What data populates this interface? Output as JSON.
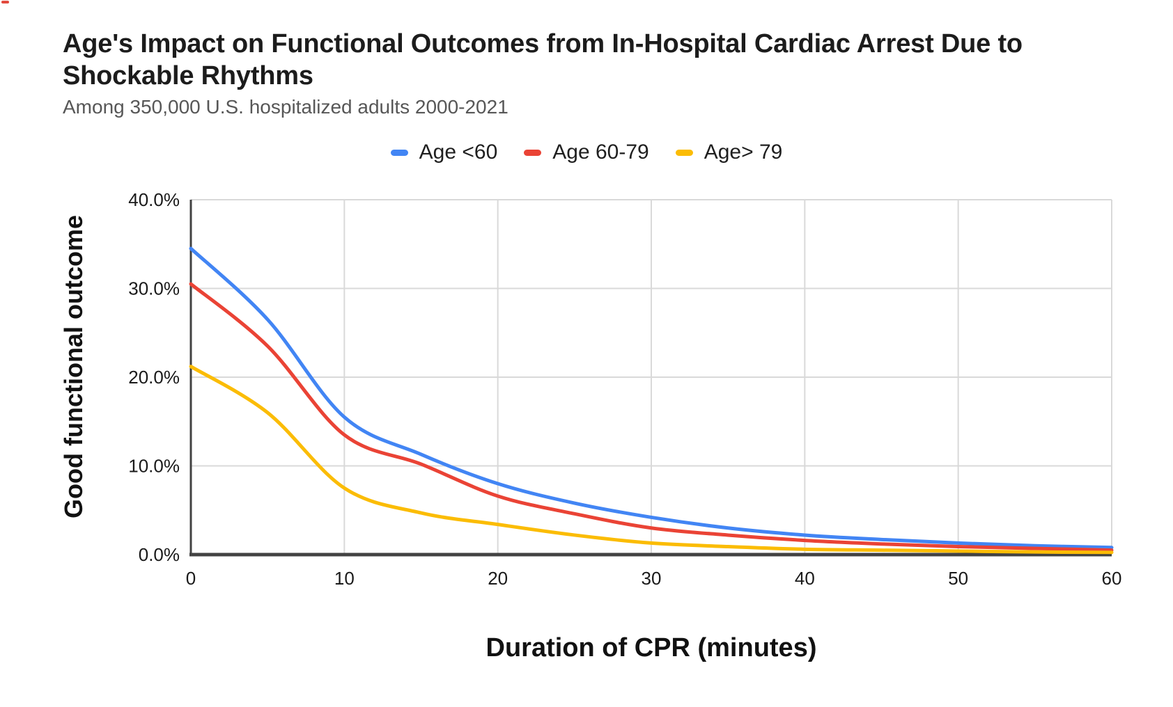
{
  "header": {
    "title": "Age's Impact on Functional Outcomes from In-Hospital Cardiac Arrest Due to Shockable Rhythms",
    "subtitle": "Among 350,000 U.S. hospitalized adults 2000-2021"
  },
  "chart_data": {
    "type": "line",
    "title": "Age's Impact on Functional Outcomes from In-Hospital Cardiac Arrest Due to Shockable Rhythms",
    "subtitle": "Among 350,000 U.S. hospitalized adults 2000-2021",
    "xlabel": "Duration of CPR (minutes)",
    "ylabel": "Good functional outcome",
    "xlim": [
      0,
      60
    ],
    "ylim": [
      0,
      40
    ],
    "x_ticks": [
      0,
      10,
      20,
      30,
      40,
      50,
      60
    ],
    "x_tick_labels": [
      "0",
      "10",
      "20",
      "30",
      "40",
      "50",
      "60"
    ],
    "y_ticks": [
      0,
      10,
      20,
      30,
      40
    ],
    "y_tick_labels": [
      "0.0%",
      "10.0%",
      "20.0%",
      "30.0%",
      "40.0%"
    ],
    "grid": true,
    "legend_position": "top",
    "x": [
      0,
      5,
      10,
      15,
      20,
      25,
      30,
      35,
      40,
      45,
      50,
      55,
      60
    ],
    "series": [
      {
        "name": "Age <60",
        "color": "#4285F4",
        "values": [
          34.5,
          26.5,
          15.5,
          11.3,
          8.0,
          5.8,
          4.2,
          3.0,
          2.2,
          1.7,
          1.3,
          1.0,
          0.8
        ]
      },
      {
        "name": "Age 60-79",
        "color": "#EA4335",
        "values": [
          30.5,
          23.5,
          13.5,
          10.2,
          6.6,
          4.6,
          3.0,
          2.2,
          1.6,
          1.2,
          0.9,
          0.7,
          0.5
        ]
      },
      {
        "name": "Age> 79",
        "color": "#FBBC04",
        "values": [
          21.2,
          16.0,
          7.5,
          4.7,
          3.4,
          2.2,
          1.3,
          0.9,
          0.6,
          0.5,
          0.4,
          0.3,
          0.25
        ]
      }
    ],
    "colors": {
      "grid": "#d9d9d9",
      "axis": "#424242",
      "tick_text": "#1a1a1a",
      "title_text": "#1c1c1c",
      "subtitle_text": "#575757"
    }
  }
}
